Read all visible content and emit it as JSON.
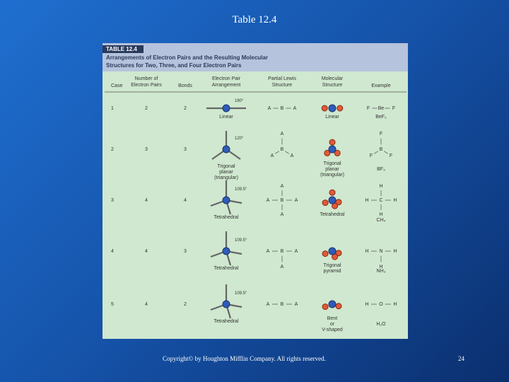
{
  "slide": {
    "title": "Table 12.4",
    "footer": "Copyright© by Houghton Mifflin Company. All rights reserved.",
    "page": "24"
  },
  "table": {
    "label": "TABLE 12.4",
    "caption": "Arrangements of Electron Pairs and the Resulting Molecular Structures for Two, Three, and Four Electron Pairs",
    "columns": [
      "Case",
      "Number of Electron Pairs",
      "Bonds",
      "Electron Pair Arrangement",
      "Partial Lewis Structure",
      "Molecular Structure",
      "Example"
    ],
    "rows": [
      {
        "case": "1",
        "pairs": "2",
        "bonds": "2",
        "angle": "180°",
        "arrangement": "Linear",
        "lewis_center": "B",
        "lewis_ligands": [
          "A",
          "A"
        ],
        "structure": "Linear",
        "example_center": "Be",
        "example_ligands": [
          "F",
          "F"
        ],
        "example_formula": "BeF₂"
      },
      {
        "case": "2",
        "pairs": "3",
        "bonds": "3",
        "angle": "120°",
        "arrangement": "Trigonal planar (triangular)",
        "lewis_center": "B",
        "lewis_ligands": [
          "A",
          "A",
          "A"
        ],
        "structure": "Trigonal planar (triangular)",
        "example_center": "B",
        "example_ligands": [
          "F",
          "F",
          "F"
        ],
        "example_formula": "BF₃"
      },
      {
        "case": "3",
        "pairs": "4",
        "bonds": "4",
        "angle": "109.5°",
        "arrangement": "Tetrahedral",
        "lewis_center": "B",
        "lewis_ligands": [
          "A",
          "A",
          "A",
          "A"
        ],
        "structure": "Tetrahedral",
        "example_center": "C",
        "example_ligands": [
          "H",
          "H",
          "H",
          "H"
        ],
        "example_formula": "CH₄"
      },
      {
        "case": "4",
        "pairs": "4",
        "bonds": "3",
        "angle": "109.5°",
        "arrangement": "Tetrahedral",
        "lewis_center": "B",
        "lewis_ligands": [
          "A",
          "A",
          "A"
        ],
        "structure": "Trigonal pyramid",
        "example_center": "N",
        "example_ligands": [
          "H",
          "H",
          "H"
        ],
        "example_formula": "NH₃"
      },
      {
        "case": "5",
        "pairs": "4",
        "bonds": "2",
        "angle": "109.5°",
        "arrangement": "Tetrahedral",
        "lewis_center": "B",
        "lewis_ligands": [
          "A",
          "A"
        ],
        "structure": "Bent or V-shaped",
        "example_center": "O",
        "example_ligands": [
          "H",
          "H"
        ],
        "example_formula": "H₂O"
      }
    ]
  }
}
